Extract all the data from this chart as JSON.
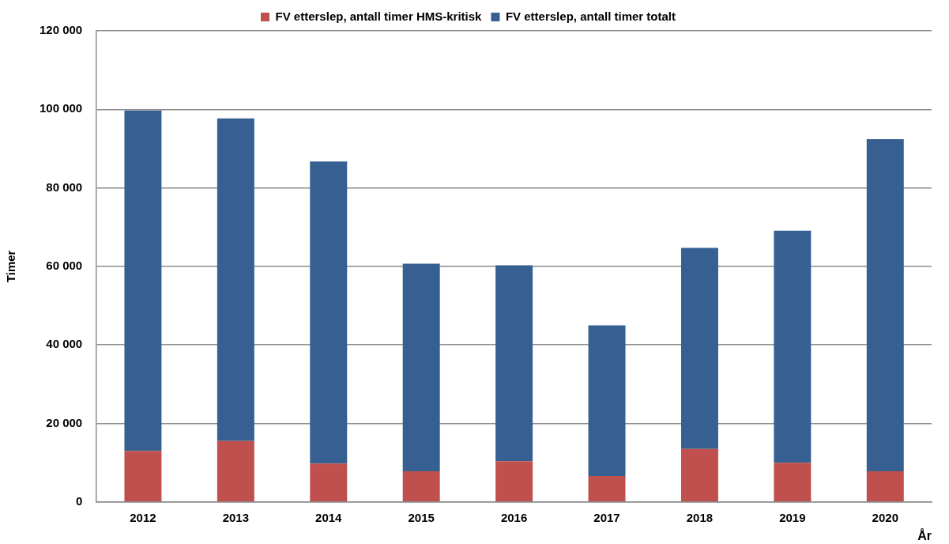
{
  "chart_data": {
    "type": "bar",
    "stacked": true,
    "categories": [
      "2012",
      "2013",
      "2014",
      "2015",
      "2016",
      "2017",
      "2018",
      "2019",
      "2020"
    ],
    "series": [
      {
        "name": "FV etterslep, antall timer HMS-kritisk",
        "color": "#c0504d",
        "values": [
          13000,
          15500,
          9800,
          7800,
          10400,
          6600,
          13500,
          10000,
          7800
        ]
      },
      {
        "name": "FV etterslep, antall timer totalt",
        "color": "#366092",
        "values": [
          86700,
          82200,
          76900,
          52900,
          49900,
          38400,
          51200,
          59100,
          84600
        ]
      }
    ],
    "xlabel": "År",
    "ylabel": "Timer",
    "ylim": [
      0,
      120000
    ],
    "yticks": [
      0,
      {
        "value": 20000,
        "label": "20 000"
      },
      {
        "value": 40000,
        "label": "40 000"
      },
      {
        "value": 60000,
        "label": "60 000"
      },
      {
        "value": 80000,
        "label": "80 000"
      },
      {
        "value": 100000,
        "label": "100 000"
      },
      {
        "value": 120000,
        "label": "120 000"
      }
    ],
    "grid": "y",
    "legend": "top"
  }
}
